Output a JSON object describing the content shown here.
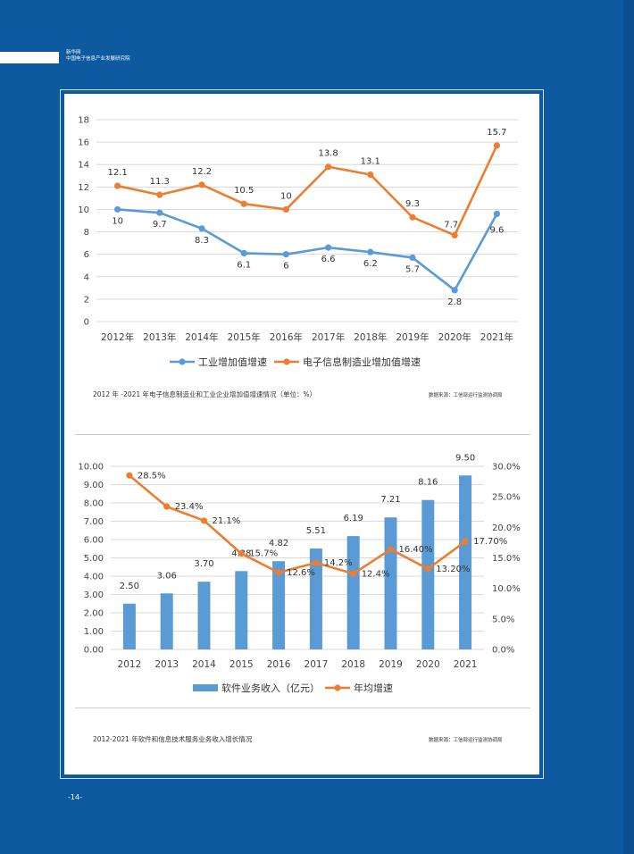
{
  "header": {
    "line1": "新华网",
    "line2": "中国电子信息产业发展研究院"
  },
  "footer": {
    "page_number": "-14-"
  },
  "captions": {
    "chart1": "2012 年 -2021 年电子信息制造业和工业企业增加值增速情况（单位：%）",
    "chart1_source": "数据来源：工信部运行监测协调局",
    "chart2": "2012-2021 年软件和信息技术服务业务收入增长情况",
    "chart2_source": "数据来源：工信部运行监测协调局"
  },
  "chart_data": [
    {
      "type": "line",
      "categories": [
        "2012年",
        "2013年",
        "2014年",
        "2015年",
        "2016年",
        "2017年",
        "2018年",
        "2019年",
        "2020年",
        "2021年"
      ],
      "series": [
        {
          "name": "工业增加值增速",
          "values": [
            10,
            9.7,
            8.3,
            6.1,
            6,
            6.6,
            6.2,
            5.7,
            2.8,
            9.6
          ],
          "labels": [
            "10",
            "9.7",
            "8.3",
            "6.1",
            "6",
            "6.6",
            "6.2",
            "5.7",
            "2.8",
            "9.6"
          ],
          "color": "#5b9bd5"
        },
        {
          "name": "电子信息制造业增加值增速",
          "values": [
            12.1,
            11.3,
            12.2,
            10.5,
            10,
            13.8,
            13.1,
            9.3,
            7.7,
            15.7
          ],
          "labels": [
            "12.1",
            "11.3",
            "12.2",
            "10.5",
            "10",
            "13.8",
            "13.1",
            "9.3",
            "7.7",
            "15.7"
          ],
          "color": "#ed7d31"
        }
      ],
      "ylim": [
        0,
        18
      ],
      "yticks": [
        "0",
        "2",
        "4",
        "6",
        "8",
        "10",
        "12",
        "14",
        "16",
        "18"
      ],
      "grid": true,
      "legend": "bottom"
    },
    {
      "type": "bar",
      "categories": [
        "2012",
        "2013",
        "2014",
        "2015",
        "2016",
        "2017",
        "2018",
        "2019",
        "2020",
        "2021"
      ],
      "series": [
        {
          "name": "软件业务收入（亿元）",
          "type": "bar",
          "values": [
            2.5,
            3.06,
            3.7,
            4.28,
            4.82,
            5.51,
            6.19,
            7.21,
            8.16,
            9.5
          ],
          "labels": [
            "2.50",
            "3.06",
            "3.70",
            "4.28",
            "4.82",
            "5.51",
            "6.19",
            "7.21",
            "8.16",
            "9.50"
          ],
          "color": "#5b9bd5"
        },
        {
          "name": "年均增速",
          "type": "line",
          "values": [
            28.5,
            23.4,
            21.1,
            15.7,
            12.6,
            14.2,
            12.4,
            16.4,
            13.2,
            17.7
          ],
          "labels": [
            "28.5%",
            "23.4%",
            "21.1%",
            "15.7%",
            "12.6%",
            "14.2%",
            "12.4%",
            "16.40%",
            "13.20%",
            "17.70%"
          ],
          "color": "#ed7d31",
          "axis": "right"
        }
      ],
      "ylim_left": [
        0,
        10
      ],
      "yticks_left": [
        "0.00",
        "1.00",
        "2.00",
        "3.00",
        "4.00",
        "5.00",
        "6.00",
        "7.00",
        "8.00",
        "9.00",
        "10.00"
      ],
      "ylim_right": [
        0,
        30
      ],
      "yticks_right": [
        "0.0%",
        "5.0%",
        "10.0%",
        "15.0%",
        "20.0%",
        "25.0%",
        "30.0%"
      ],
      "grid": true,
      "legend": "bottom"
    }
  ]
}
